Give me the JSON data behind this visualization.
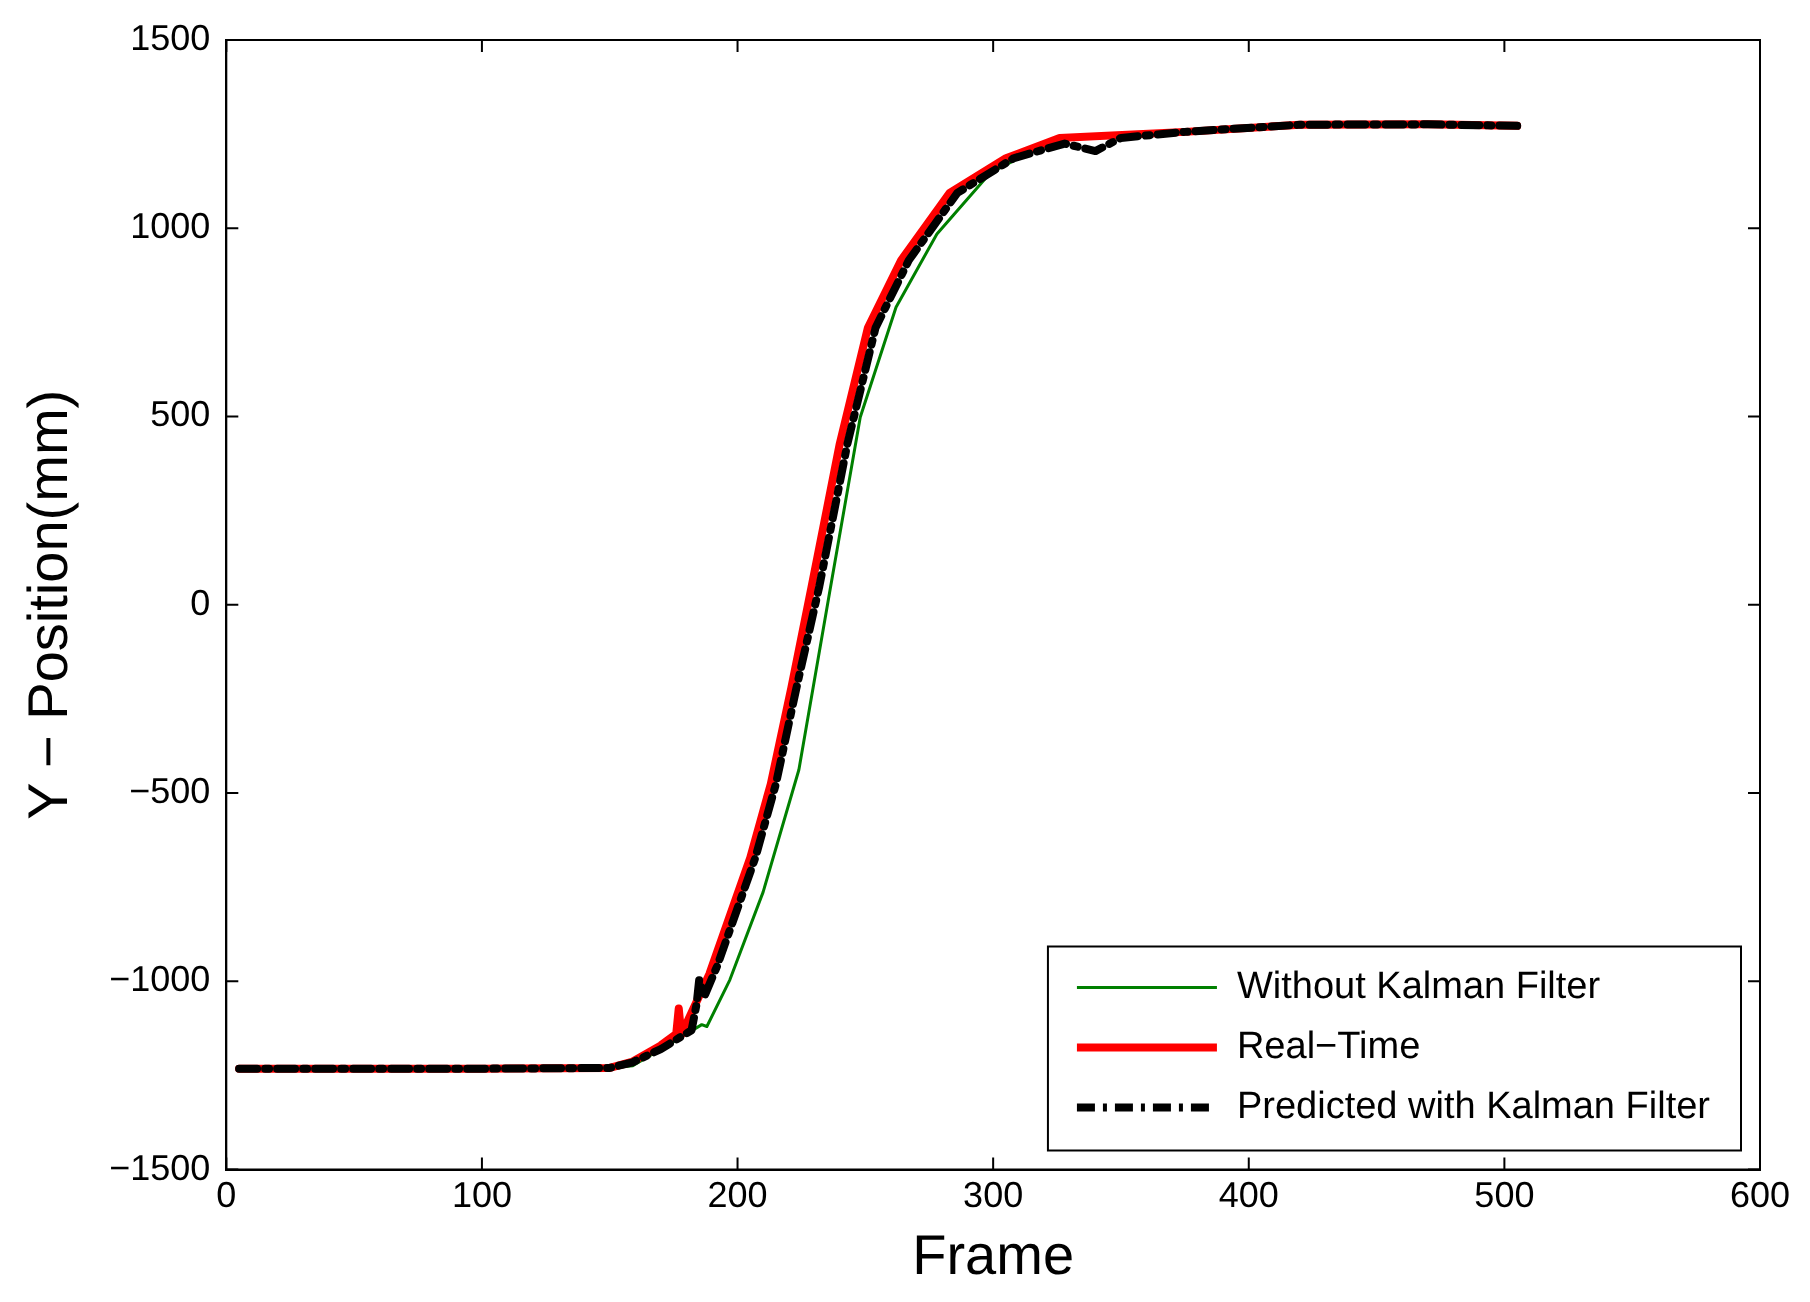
{
  "chart_data": {
    "type": "line",
    "xlabel": "Frame",
    "ylabel": "Y − Position(mm)",
    "xlim": [
      0,
      600
    ],
    "xticks": [
      0,
      100,
      200,
      300,
      400,
      500,
      600
    ],
    "ylim": [
      -1500,
      1500
    ],
    "yticks": [
      -1500,
      -1000,
      -500,
      0,
      500,
      1000,
      1500
    ],
    "grid": false,
    "legend": "bottom right",
    "marker": "none",
    "series": [
      {
        "name": "Without Kalman Filter",
        "color": "#008000",
        "line_style": "solid",
        "x": [
          150,
          159,
          170,
          180,
          186,
          188,
          197,
          210,
          224,
          236,
          248,
          262,
          278,
          299,
          321
        ],
        "values": [
          -1230,
          -1224,
          -1180,
          -1140,
          -1115,
          -1120,
          -996,
          -763,
          -438,
          32,
          498,
          790,
          985,
          1148,
          1224
        ]
      },
      {
        "name": "Real−Time",
        "color": "#ff0000",
        "line_style": "solid",
        "x": [
          5,
          50,
          100,
          150,
          159,
          170,
          176,
          177,
          178,
          189,
          205,
          213,
          221,
          229,
          240,
          251,
          264,
          283,
          305,
          326,
          375,
          420,
          470,
          505
        ],
        "values": [
          -1232,
          -1232,
          -1232,
          -1230,
          -1213,
          -1170,
          -1140,
          -1072,
          -1142,
          -980,
          -671,
          -476,
          -222,
          49,
          428,
          736,
          915,
          1094,
          1186,
          1240,
          1256,
          1275,
          1276,
          1272
        ]
      },
      {
        "name": "Predicted with Kalman Filter",
        "color": "#000000",
        "line_style": "dashed",
        "x": [
          5,
          50,
          100,
          150,
          159,
          170,
          182,
          184,
          185,
          187,
          192,
          207,
          215,
          223,
          232,
          243,
          254,
          267,
          286,
          308,
          328,
          340,
          350,
          375,
          420,
          470,
          505
        ],
        "values": [
          -1232,
          -1232,
          -1232,
          -1230,
          -1215,
          -1180,
          -1130,
          -1060,
          -996,
          -1040,
          -960,
          -671,
          -476,
          -222,
          49,
          428,
          736,
          915,
          1094,
          1186,
          1225,
          1205,
          1240,
          1256,
          1275,
          1276,
          1272
        ]
      }
    ]
  }
}
